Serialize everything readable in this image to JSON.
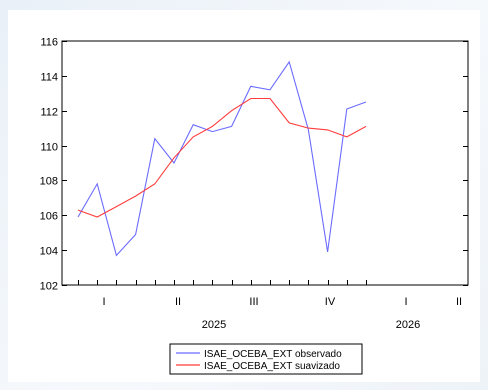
{
  "chart_data": {
    "type": "line",
    "x_tick_labels": [
      "I",
      "II",
      "III",
      "IV",
      "I",
      "II"
    ],
    "year_labels": [
      "2025",
      "2026"
    ],
    "yticks": [
      102,
      104,
      106,
      108,
      110,
      112,
      114,
      116
    ],
    "ylim": [
      102,
      116
    ],
    "grid": false,
    "legend_position": "bottom-center",
    "series": [
      {
        "name": "ISAE_OCEBA_EXT observado",
        "color": "#6b6bff",
        "values": [
          105.9,
          107.8,
          103.7,
          104.9,
          110.4,
          109.0,
          111.2,
          110.8,
          111.1,
          113.4,
          113.2,
          114.8,
          110.9,
          103.9,
          112.1,
          112.5
        ]
      },
      {
        "name": "ISAE_OCEBA_EXT suavizado",
        "color": "#ff3b3b",
        "values": [
          106.3,
          105.9,
          106.5,
          107.1,
          107.8,
          109.3,
          110.5,
          111.1,
          112.0,
          112.7,
          112.7,
          111.3,
          111.0,
          110.9,
          110.5,
          111.1
        ]
      }
    ]
  }
}
